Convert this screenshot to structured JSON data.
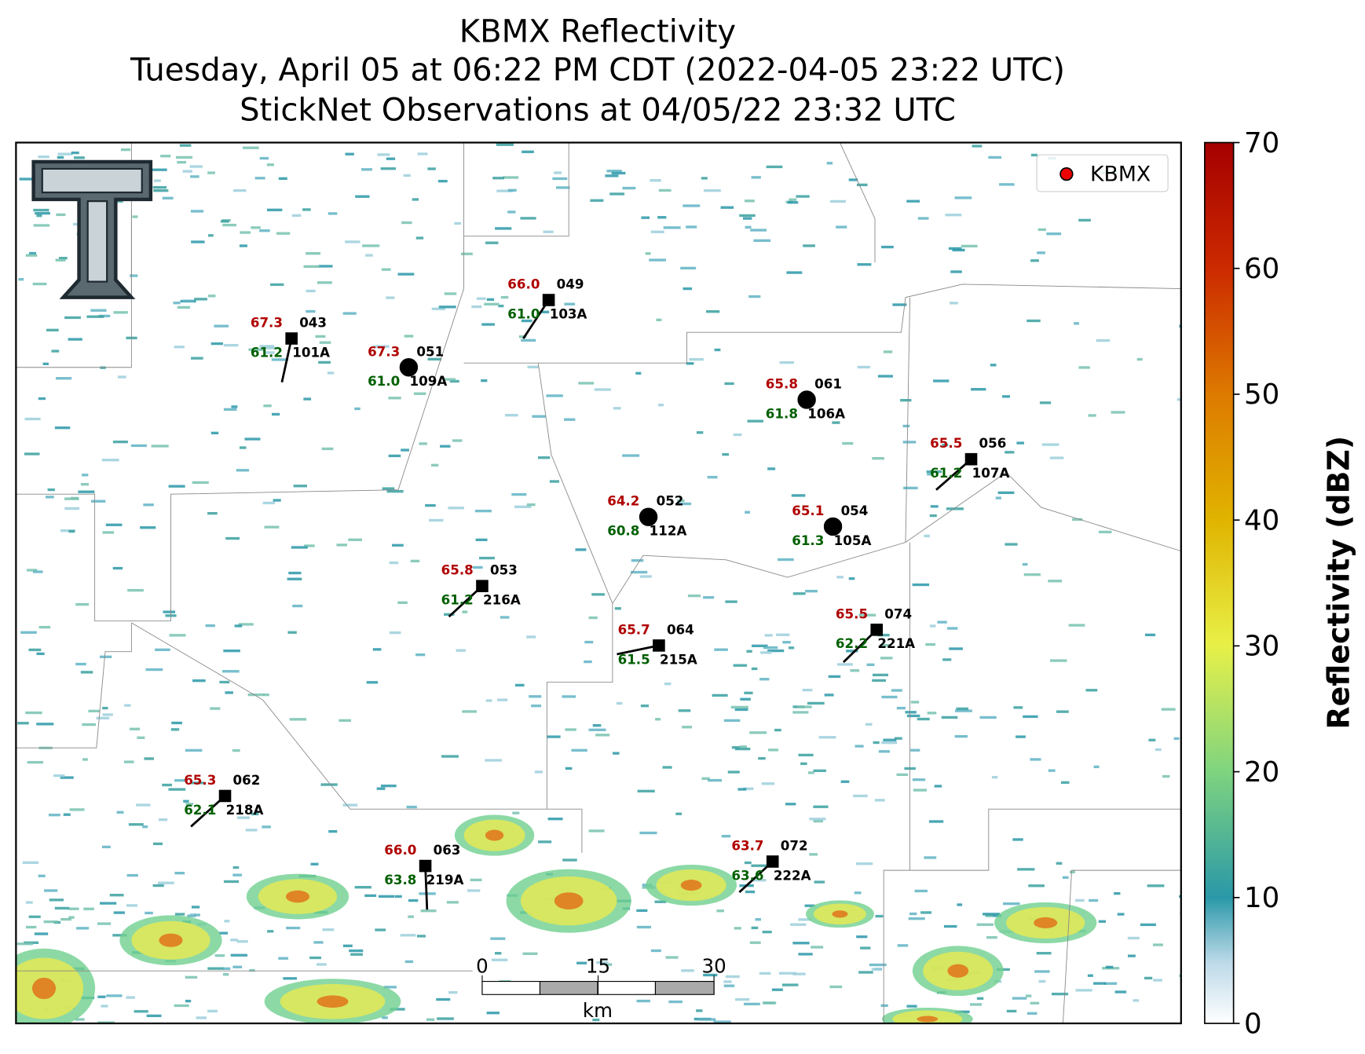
{
  "header": {
    "title": [
      "KBMX Reflectivity",
      "Tuesday, April 05 at 06:22 PM CDT (2022-04-05 23:22 UTC)",
      "StickNet Observations at 04/05/22 23:32 UTC"
    ]
  },
  "legend": {
    "label": "KBMX"
  },
  "colorbar": {
    "label": "Reflectivity (dBZ)",
    "lim": [
      0,
      70
    ],
    "ticks": [
      0,
      10,
      20,
      30,
      40,
      50,
      60,
      70
    ]
  },
  "scale_bar": {
    "ticks": [
      0,
      15,
      30
    ],
    "unit": "km"
  },
  "stations": [
    {
      "temp": "67.3",
      "code": "043",
      "dew": "61.2",
      "id": "101A"
    },
    {
      "temp": "67.3",
      "code": "051",
      "dew": "61.0",
      "id": "109A"
    },
    {
      "temp": "66.0",
      "code": "049",
      "dew": "61.0",
      "id": "103A"
    },
    {
      "temp": "65.8",
      "code": "061",
      "dew": "61.8",
      "id": "106A"
    },
    {
      "temp": "65.5",
      "code": "056",
      "dew": "61.2",
      "id": "107A"
    },
    {
      "temp": "64.2",
      "code": "052",
      "dew": "60.8",
      "id": "112A"
    },
    {
      "temp": "65.1",
      "code": "054",
      "dew": "61.3",
      "id": "105A"
    },
    {
      "temp": "65.8",
      "code": "053",
      "dew": "61.2",
      "id": "216A"
    },
    {
      "temp": "65.7",
      "code": "064",
      "dew": "61.5",
      "id": "215A"
    },
    {
      "temp": "65.5",
      "code": "074",
      "dew": "62.2",
      "id": "221A"
    },
    {
      "temp": "65.3",
      "code": "062",
      "dew": "62.1",
      "id": "218A"
    },
    {
      "temp": "66.0",
      "code": "063",
      "dew": "63.8",
      "id": "219A"
    },
    {
      "temp": "63.7",
      "code": "072",
      "dew": "63.6",
      "id": "222A"
    }
  ]
}
